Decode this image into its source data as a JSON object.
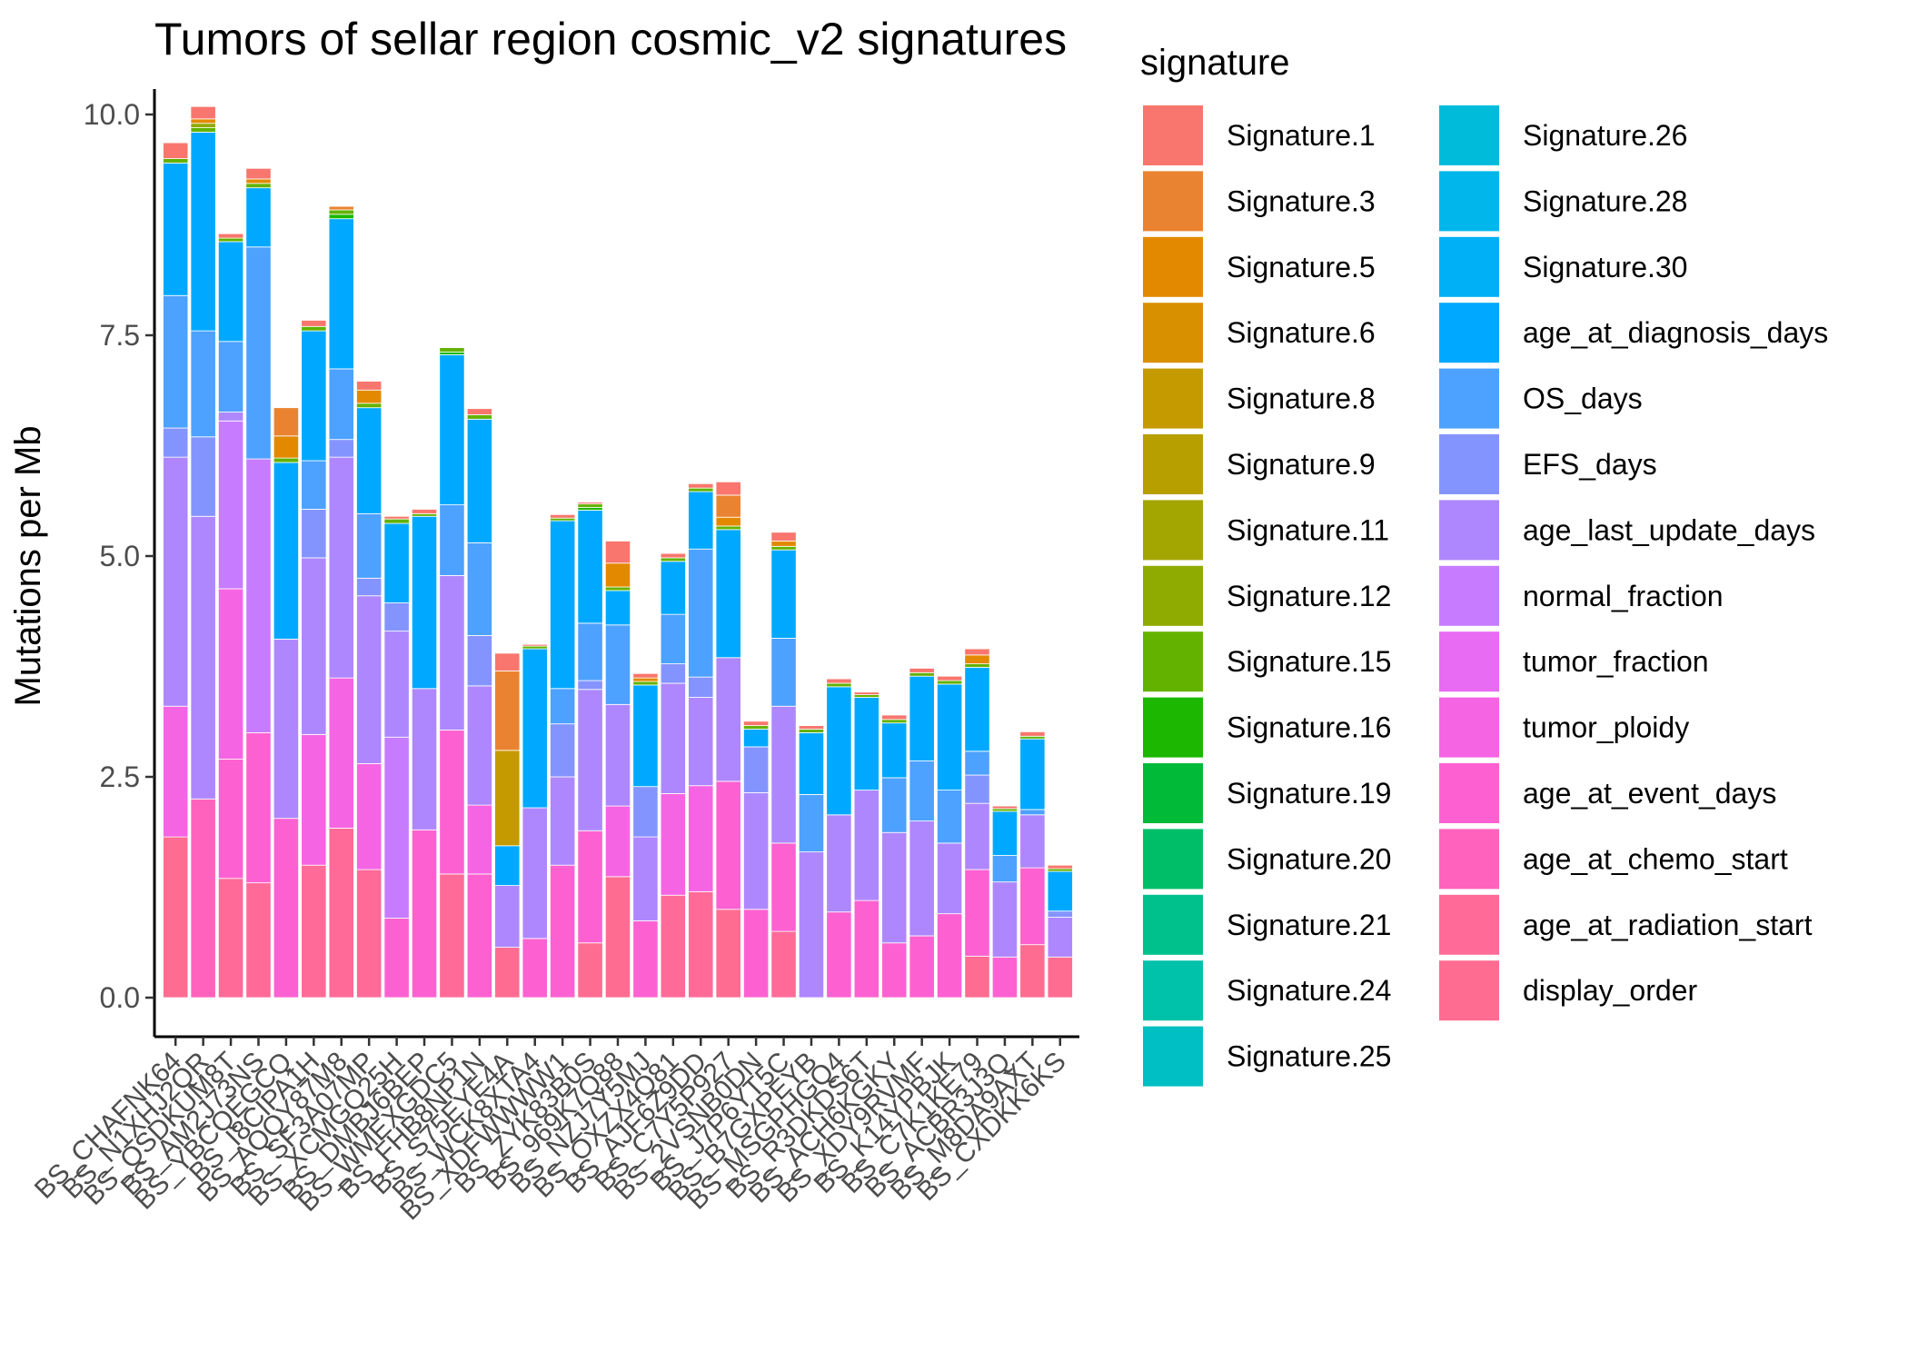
{
  "chart_data": {
    "type": "bar",
    "title": "Tumors of sellar region cosmic_v2 signatures",
    "xlabel": "",
    "ylabel": "Mutations per Mb",
    "ylim": [
      0,
      10.4
    ],
    "yticks": [
      "0.0",
      "2.5",
      "5.0",
      "7.5",
      "10.0"
    ],
    "grid": false,
    "stacked": true,
    "legend_title": "signature",
    "legend_position": "right",
    "categories": [
      "BS_CHAFNK64",
      "BS_N1XHJ2QR",
      "BS_QSDKUM8T",
      "BS_AM2J73NS",
      "BS_YBCQEGCQ",
      "BS_I8CIPA1H",
      "BS_AQQY87M8",
      "BS_SF3A07MP",
      "BS_XCMGQ25H",
      "BS_DMBJ6BEP",
      "BS_WMEXGDC5",
      "BS_FHB8NP1N",
      "BS_S75EYE4A",
      "BS_WCK8XTA4",
      "BS_XDFWWWW1",
      "BS_ZYK83B0S",
      "BS_969K7Q88",
      "BS_NZJ7Y5MJ",
      "BS_OXZX4Q81",
      "BS_AJF6Z9DD",
      "BS_C7Y5P927",
      "BS_2VSNB0DN",
      "BS_J7P6YT5C",
      "BS_B7GXPEYB",
      "BS_MSGPHGQ4",
      "BS_R3DKDS6T",
      "BS_ACH6KGKY",
      "BS_XDY9RVMF",
      "BS_K14YPBJK",
      "BS_C7K1KE79",
      "BS_ACBR3J3Q",
      "BS_M8DA9AXT",
      "BS_CXDKK6KS"
    ],
    "series": [
      {
        "name": "Signature.1",
        "color": "#F8766D",
        "values": [
          0.18,
          0.14,
          0.05,
          0.12,
          0.0,
          0.07,
          0.0,
          0.1,
          0.03,
          0.05,
          0.0,
          0.07,
          0.2,
          0.02,
          0.04,
          0.02,
          0.25,
          0.05,
          0.05,
          0.05,
          0.15,
          0.05,
          0.1,
          0.04,
          0.05,
          0.03,
          0.05,
          0.05,
          0.05,
          0.07,
          0.03,
          0.05,
          0.04
        ]
      },
      {
        "name": "Signature.3",
        "color": "#EA8331",
        "values": [
          0.0,
          0.0,
          0.0,
          0.0,
          0.32,
          0.0,
          0.04,
          0.0,
          0.0,
          0.0,
          0.0,
          0.0,
          0.9,
          0.0,
          0.0,
          0.0,
          0.0,
          0.0,
          0.0,
          0.0,
          0.25,
          0.0,
          0.0,
          0.0,
          0.0,
          0.0,
          0.0,
          0.0,
          0.0,
          0.0,
          0.0,
          0.0,
          0.0
        ]
      },
      {
        "name": "Signature.5",
        "color": "#E38900",
        "values": [
          0.0,
          0.05,
          0.0,
          0.05,
          0.25,
          0.0,
          0.0,
          0.15,
          0.0,
          0.0,
          0.0,
          0.0,
          0.0,
          0.0,
          0.0,
          0.0,
          0.27,
          0.04,
          0.0,
          0.0,
          0.1,
          0.0,
          0.06,
          0.0,
          0.0,
          0.0,
          0.0,
          0.0,
          0.0,
          0.1,
          0.0,
          0.0,
          0.0
        ]
      },
      {
        "name": "Signature.6",
        "color": "#D89000",
        "values": [
          0.0,
          0.0,
          0.0,
          0.0,
          0.0,
          0.0,
          0.0,
          0.0,
          0.0,
          0.0,
          0.0,
          0.0,
          0.0,
          0.0,
          0.0,
          0.0,
          0.0,
          0.0,
          0.0,
          0.0,
          0.0,
          0.0,
          0.0,
          0.0,
          0.0,
          0.0,
          0.0,
          0.0,
          0.0,
          0.0,
          0.0,
          0.0,
          0.0
        ]
      },
      {
        "name": "Signature.8",
        "color": "#C49A00",
        "values": [
          0.0,
          0.0,
          0.0,
          0.0,
          0.0,
          0.0,
          0.0,
          0.0,
          0.0,
          0.0,
          0.0,
          0.0,
          1.08,
          0.0,
          0.0,
          0.0,
          0.0,
          0.0,
          0.0,
          0.0,
          0.0,
          0.0,
          0.0,
          0.0,
          0.0,
          0.0,
          0.0,
          0.0,
          0.0,
          0.0,
          0.0,
          0.0,
          0.0
        ]
      },
      {
        "name": "Signature.9",
        "color": "#B79F00",
        "values": [
          0.0,
          0.0,
          0.0,
          0.0,
          0.0,
          0.0,
          0.0,
          0.0,
          0.0,
          0.0,
          0.0,
          0.0,
          0.0,
          0.0,
          0.0,
          0.0,
          0.0,
          0.0,
          0.0,
          0.0,
          0.0,
          0.0,
          0.0,
          0.0,
          0.0,
          0.0,
          0.0,
          0.0,
          0.0,
          0.0,
          0.0,
          0.0,
          0.0
        ]
      },
      {
        "name": "Signature.11",
        "color": "#A3A500",
        "values": [
          0.0,
          0.0,
          0.0,
          0.0,
          0.0,
          0.0,
          0.0,
          0.0,
          0.0,
          0.0,
          0.0,
          0.0,
          0.0,
          0.0,
          0.0,
          0.0,
          0.0,
          0.0,
          0.0,
          0.0,
          0.0,
          0.0,
          0.0,
          0.0,
          0.0,
          0.0,
          0.0,
          0.0,
          0.0,
          0.0,
          0.0,
          0.0,
          0.0
        ]
      },
      {
        "name": "Signature.12",
        "color": "#8FAA00",
        "values": [
          0.0,
          0.05,
          0.0,
          0.0,
          0.0,
          0.0,
          0.0,
          0.0,
          0.0,
          0.0,
          0.0,
          0.0,
          0.0,
          0.0,
          0.0,
          0.0,
          0.0,
          0.0,
          0.0,
          0.0,
          0.0,
          0.0,
          0.0,
          0.0,
          0.0,
          0.0,
          0.0,
          0.0,
          0.0,
          0.0,
          0.0,
          0.0,
          0.0
        ]
      },
      {
        "name": "Signature.15",
        "color": "#64B200",
        "values": [
          0.05,
          0.05,
          0.04,
          0.05,
          0.05,
          0.05,
          0.05,
          0.05,
          0.05,
          0.03,
          0.05,
          0.05,
          0.0,
          0.03,
          0.03,
          0.04,
          0.04,
          0.04,
          0.04,
          0.04,
          0.04,
          0.04,
          0.04,
          0.04,
          0.04,
          0.03,
          0.04,
          0.04,
          0.04,
          0.04,
          0.03,
          0.03,
          0.03
        ]
      },
      {
        "name": "Signature.16",
        "color": "#1CB700",
        "values": [
          0.0,
          0.0,
          0.0,
          0.0,
          0.0,
          0.0,
          0.05,
          0.0,
          0.0,
          0.0,
          0.03,
          0.0,
          0.0,
          0.0,
          0.0,
          0.03,
          0.0,
          0.0,
          0.0,
          0.0,
          0.0,
          0.0,
          0.0,
          0.0,
          0.0,
          0.0,
          0.0,
          0.0,
          0.0,
          0.0,
          0.0,
          0.0,
          0.0
        ]
      },
      {
        "name": "Signature.19",
        "color": "#00BA38",
        "values": [
          0.0,
          0.0,
          0.0,
          0.0,
          0.0,
          0.0,
          0.0,
          0.0,
          0.0,
          0.0,
          0.0,
          0.0,
          0.0,
          0.0,
          0.0,
          0.0,
          0.0,
          0.0,
          0.0,
          0.0,
          0.0,
          0.0,
          0.0,
          0.0,
          0.0,
          0.0,
          0.0,
          0.0,
          0.0,
          0.0,
          0.0,
          0.0,
          0.0
        ]
      },
      {
        "name": "Signature.20",
        "color": "#00BE67",
        "values": [
          0.0,
          0.0,
          0.0,
          0.0,
          0.0,
          0.0,
          0.0,
          0.0,
          0.0,
          0.0,
          0.0,
          0.0,
          0.0,
          0.0,
          0.0,
          0.0,
          0.0,
          0.0,
          0.0,
          0.0,
          0.0,
          0.0,
          0.0,
          0.0,
          0.0,
          0.0,
          0.0,
          0.0,
          0.0,
          0.0,
          0.0,
          0.0,
          0.0
        ]
      },
      {
        "name": "Signature.21",
        "color": "#00C08B",
        "values": [
          0.0,
          0.0,
          0.0,
          0.0,
          0.0,
          0.0,
          0.0,
          0.0,
          0.0,
          0.0,
          0.0,
          0.0,
          0.0,
          0.0,
          0.0,
          0.0,
          0.0,
          0.0,
          0.0,
          0.0,
          0.0,
          0.0,
          0.0,
          0.0,
          0.0,
          0.0,
          0.0,
          0.0,
          0.0,
          0.0,
          0.0,
          0.0,
          0.0
        ]
      },
      {
        "name": "Signature.24",
        "color": "#00C1A9",
        "values": [
          0.0,
          0.0,
          0.0,
          0.0,
          0.0,
          0.0,
          0.0,
          0.0,
          0.0,
          0.0,
          0.0,
          0.0,
          0.0,
          0.0,
          0.0,
          0.0,
          0.0,
          0.0,
          0.0,
          0.0,
          0.0,
          0.0,
          0.0,
          0.0,
          0.0,
          0.0,
          0.0,
          0.0,
          0.0,
          0.0,
          0.0,
          0.0,
          0.0
        ]
      },
      {
        "name": "Signature.25",
        "color": "#00BFC4",
        "values": [
          0.0,
          0.0,
          0.0,
          0.0,
          0.0,
          0.0,
          0.0,
          0.0,
          0.0,
          0.0,
          0.0,
          0.0,
          0.0,
          0.0,
          0.0,
          0.0,
          0.0,
          0.0,
          0.0,
          0.0,
          0.0,
          0.0,
          0.0,
          0.0,
          0.0,
          0.0,
          0.0,
          0.0,
          0.0,
          0.0,
          0.0,
          0.0,
          0.0
        ]
      },
      {
        "name": "Signature.26",
        "color": "#00BBDA",
        "values": [
          0.0,
          0.0,
          0.0,
          0.0,
          0.0,
          0.0,
          0.0,
          0.0,
          0.0,
          0.0,
          0.0,
          0.0,
          0.0,
          0.0,
          0.0,
          0.0,
          0.0,
          0.0,
          0.0,
          0.0,
          0.0,
          0.0,
          0.0,
          0.0,
          0.0,
          0.0,
          0.0,
          0.0,
          0.0,
          0.0,
          0.0,
          0.0,
          0.0
        ]
      },
      {
        "name": "Signature.28",
        "color": "#00B6EB",
        "values": [
          0.0,
          0.0,
          0.0,
          0.0,
          0.0,
          0.0,
          0.0,
          0.0,
          0.0,
          0.0,
          0.0,
          0.0,
          0.0,
          0.0,
          0.0,
          0.0,
          0.0,
          0.0,
          0.0,
          0.0,
          0.0,
          0.0,
          0.0,
          0.0,
          0.0,
          0.0,
          0.0,
          0.0,
          0.0,
          0.0,
          0.0,
          0.0,
          0.0
        ]
      },
      {
        "name": "Signature.30",
        "color": "#00B0F6",
        "values": [
          0.0,
          0.0,
          0.0,
          0.0,
          0.0,
          0.0,
          0.0,
          0.0,
          0.0,
          0.0,
          0.0,
          0.0,
          0.0,
          0.0,
          0.0,
          0.0,
          0.0,
          0.0,
          0.0,
          0.0,
          0.0,
          0.0,
          0.0,
          0.0,
          0.0,
          0.0,
          0.0,
          0.0,
          0.0,
          0.0,
          0.0,
          0.0,
          0.0
        ]
      },
      {
        "name": "age_at_diagnosis_days",
        "color": "#00A9FF",
        "values": [
          1.5,
          2.25,
          1.13,
          0.67,
          2.0,
          1.47,
          1.7,
          1.2,
          0.9,
          1.95,
          1.7,
          1.4,
          0.45,
          1.8,
          1.9,
          1.28,
          0.39,
          1.15,
          0.6,
          0.65,
          1.45,
          0.2,
          1.0,
          0.7,
          1.45,
          1.05,
          0.62,
          0.96,
          1.2,
          0.95,
          0.5,
          0.8,
          0.45
        ]
      },
      {
        "name": "OS_days",
        "color": "#4DA1FF",
        "values": [
          1.5,
          1.2,
          0.8,
          2.4,
          0.0,
          0.55,
          0.8,
          0.73,
          0.0,
          0.0,
          0.8,
          1.05,
          0.0,
          0.0,
          0.4,
          0.65,
          0.9,
          0.0,
          0.56,
          1.45,
          0.0,
          0.0,
          0.77,
          0.65,
          0.0,
          0.0,
          0.62,
          0.68,
          0.6,
          0.27,
          0.3,
          0.06,
          0.0
        ]
      },
      {
        "name": "EFS_days",
        "color": "#8494FF",
        "values": [
          0.33,
          0.9,
          0.0,
          0.0,
          0.0,
          0.55,
          0.2,
          0.2,
          0.32,
          0.0,
          0.0,
          0.57,
          0.0,
          0.0,
          0.6,
          0.1,
          0.0,
          0.57,
          0.22,
          0.23,
          0.0,
          0.52,
          0.0,
          0.0,
          0.0,
          0.0,
          0.0,
          0.0,
          0.0,
          0.32,
          0.0,
          0.0,
          0.07
        ]
      },
      {
        "name": "age_last_update_days",
        "color": "#AE87FF",
        "values": [
          2.82,
          3.2,
          0.1,
          0.0,
          2.03,
          2.0,
          2.5,
          1.9,
          1.2,
          1.6,
          1.75,
          1.35,
          0.7,
          1.48,
          1.0,
          1.6,
          1.15,
          0.95,
          1.25,
          1.0,
          1.4,
          1.32,
          1.55,
          1.65,
          1.1,
          1.25,
          1.25,
          1.3,
          0.8,
          0.75,
          0.85,
          0.6,
          0.45
        ]
      },
      {
        "name": "normal_fraction",
        "color": "#C77CFF",
        "values": [
          0.0,
          0.0,
          1.9,
          3.1,
          0.0,
          0.0,
          0.0,
          0.0,
          2.05,
          0.0,
          0.0,
          0.0,
          0.0,
          0.0,
          0.0,
          0.0,
          0.0,
          0.0,
          0.0,
          0.0,
          0.0,
          0.0,
          0.0,
          0.0,
          0.0,
          0.0,
          0.0,
          0.0,
          0.0,
          0.0,
          0.0,
          0.0,
          0.0
        ]
      },
      {
        "name": "tumor_fraction",
        "color": "#E76BF3",
        "values": [
          0.0,
          0.0,
          0.0,
          0.0,
          0.0,
          0.0,
          0.0,
          0.0,
          0.0,
          0.0,
          0.0,
          0.0,
          0.0,
          0.0,
          0.0,
          0.0,
          0.0,
          0.0,
          0.0,
          0.0,
          0.0,
          0.0,
          0.0,
          0.0,
          0.0,
          0.0,
          0.0,
          0.0,
          0.0,
          0.0,
          0.0,
          0.0,
          0.0
        ]
      },
      {
        "name": "tumor_ploidy",
        "color": "#F564E3",
        "values": [
          1.48,
          0.0,
          1.93,
          0.0,
          0.0,
          1.48,
          1.7,
          1.2,
          0.0,
          0.0,
          0.0,
          0.78,
          0.0,
          0.0,
          0.0,
          0.0,
          0.8,
          0.0,
          1.15,
          1.2,
          0.0,
          0.0,
          0.0,
          0.0,
          0.0,
          0.0,
          0.0,
          0.0,
          0.0,
          0.0,
          0.0,
          0.0,
          0.0
        ]
      },
      {
        "name": "age_at_event_days",
        "color": "#FD61D1",
        "values": [
          0.0,
          0.0,
          1.35,
          1.7,
          2.03,
          0.0,
          0.0,
          0.0,
          0.9,
          1.9,
          1.63,
          1.4,
          0.0,
          0.67,
          1.5,
          1.27,
          0.0,
          0.87,
          0.0,
          0.0,
          1.45,
          1.0,
          1.0,
          0.0,
          0.97,
          1.1,
          0.62,
          0.7,
          0.95,
          0.98,
          0.46,
          0.87,
          0.0
        ]
      },
      {
        "name": "age_at_chemo_start",
        "color": "#FF62BC",
        "values": [
          0.0,
          2.25,
          0.0,
          0.0,
          0.0,
          0.0,
          0.0,
          0.0,
          0.0,
          0.0,
          0.0,
          0.0,
          0.0,
          0.0,
          0.0,
          0.0,
          0.0,
          0.0,
          0.0,
          0.0,
          0.0,
          0.0,
          0.0,
          0.0,
          0.0,
          0.0,
          0.0,
          0.0,
          0.0,
          0.0,
          0.0,
          0.0,
          0.0
        ]
      },
      {
        "name": "age_at_radiation_start",
        "color": "#FF6A98",
        "values": [
          0.0,
          0.0,
          1.35,
          1.3,
          0.0,
          1.5,
          1.92,
          1.45,
          0.0,
          0.0,
          1.4,
          0.0,
          0.0,
          0.0,
          0.0,
          0.0,
          0.0,
          0.0,
          1.16,
          1.2,
          0.0,
          0.0,
          0.75,
          0.0,
          0.0,
          0.0,
          0.0,
          0.0,
          0.0,
          0.0,
          0.0,
          0.0,
          0.0
        ]
      },
      {
        "name": "display_order",
        "color": "#FF6C91",
        "values": [
          1.82,
          0.0,
          0.0,
          0.0,
          0.0,
          0.0,
          0.0,
          0.0,
          0.0,
          0.0,
          0.0,
          0.0,
          0.57,
          0.0,
          0.0,
          0.62,
          1.37,
          0.0,
          0.0,
          0.0,
          1.0,
          0.0,
          0.0,
          0.0,
          0.0,
          0.0,
          0.0,
          0.0,
          0.0,
          0.47,
          0.0,
          0.6,
          0.46
        ]
      }
    ]
  }
}
